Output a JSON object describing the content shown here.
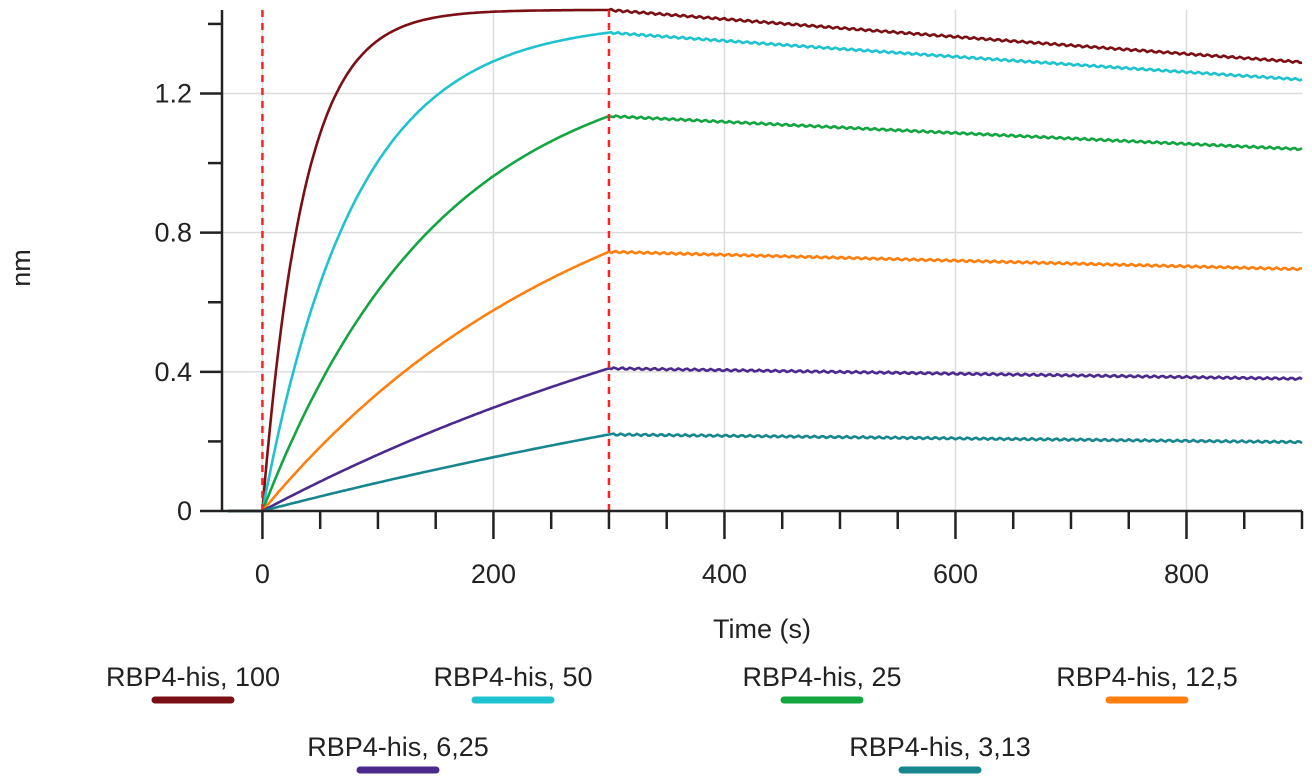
{
  "chart_data": {
    "type": "line",
    "xlabel": "Time (s)",
    "ylabel": "nm",
    "xlim": [
      -35,
      900
    ],
    "ylim": [
      0,
      1.44
    ],
    "x_ticks": [
      0,
      200,
      400,
      600,
      800
    ],
    "y_ticks": [
      0,
      0.4,
      0.8,
      1.2
    ],
    "x_minor_step": 50,
    "y_minor_step": 0.2,
    "grid": true,
    "reference_lines_x": [
      0,
      300
    ],
    "reference_line_color": "#ff2020",
    "association_end": 300,
    "x_start": -30,
    "x_end": 900,
    "legend_position": "bottom",
    "series": [
      {
        "name": "RBP4-his, 100",
        "color": "#7b1014",
        "peak": 1.44,
        "k_on": 0.028,
        "end": 1.29
      },
      {
        "name": "RBP4-his, 50",
        "color": "#1fc2cf",
        "peak": 1.375,
        "k_on": 0.0125,
        "end": 1.24
      },
      {
        "name": "RBP4-his, 25",
        "color": "#12a540",
        "peak": 1.135,
        "k_on": 0.0065,
        "end": 1.04
      },
      {
        "name": "RBP4-his, 12,5",
        "color": "#ff7f0e",
        "peak": 0.745,
        "k_on": 0.0035,
        "end": 0.695
      },
      {
        "name": "RBP4-his, 6,25",
        "color": "#4b2a8e",
        "peak": 0.41,
        "k_on": 0.0018,
        "end": 0.38
      },
      {
        "name": "RBP4-his, 3,13",
        "color": "#17868f",
        "peak": 0.22,
        "k_on": 0.0011,
        "end": 0.198
      }
    ]
  }
}
